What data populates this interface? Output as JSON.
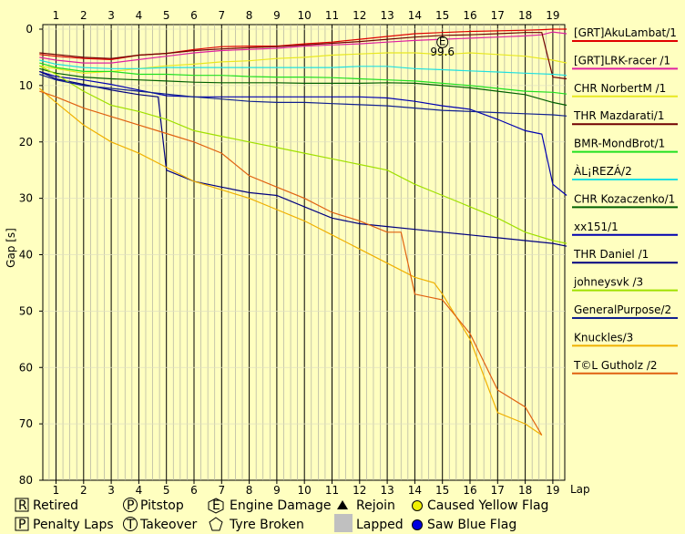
{
  "chart_data": {
    "type": "line",
    "title": "",
    "xlabel": "Lap",
    "ylabel": "Gap [s]",
    "x_ticks": [
      1,
      2,
      3,
      4,
      5,
      6,
      7,
      8,
      9,
      10,
      11,
      12,
      13,
      14,
      15,
      16,
      17,
      18,
      19
    ],
    "ylim": [
      0,
      80
    ],
    "y_ticks": [
      0,
      10,
      20,
      30,
      40,
      50,
      60,
      70,
      80
    ],
    "y_inverted": true,
    "grid": true,
    "legend_placement": "right",
    "series": [
      {
        "name": "[GRT]AkuLambat/1",
        "color": "#e00000",
        "x": [
          0.4,
          1,
          2,
          3,
          4,
          5,
          6,
          7,
          8,
          9,
          10,
          11,
          12,
          13,
          14,
          15,
          16,
          17,
          18,
          18.6,
          19,
          19.5
        ],
        "y": [
          4.5,
          4.8,
          5.2,
          5.4,
          4.6,
          4.3,
          3.6,
          3.1,
          3.0,
          3.0,
          2.6,
          2.3,
          1.8,
          1.3,
          0.8,
          0.6,
          0.4,
          0.3,
          0.2,
          0.1,
          0,
          0
        ]
      },
      {
        "name": "[GRT]LRK-racer /1",
        "color": "#e020a0",
        "x": [
          0.4,
          1,
          2,
          3,
          4,
          5,
          6,
          7,
          8,
          9,
          10,
          11,
          12,
          13,
          14,
          15,
          16,
          17,
          18,
          18.6,
          19,
          19.5
        ],
        "y": [
          5,
          5.5,
          6,
          6,
          5.4,
          4.8,
          4.2,
          3.8,
          3.6,
          3.4,
          3.0,
          2.8,
          2.6,
          2.3,
          2.0,
          1.8,
          1.6,
          1.4,
          1.2,
          1.0,
          0.5,
          0.8
        ]
      },
      {
        "name": "CHR NorbertM /1",
        "color": "#e8e820",
        "x": [
          0.4,
          1,
          2,
          3,
          4,
          5,
          6,
          7,
          8,
          9,
          10,
          11,
          12,
          13,
          14,
          15,
          16,
          17,
          18,
          19,
          19.5
        ],
        "y": [
          6.5,
          7,
          7.8,
          7.5,
          7,
          6.5,
          6.2,
          5.8,
          5.6,
          5.2,
          5,
          4.6,
          4.4,
          4.2,
          4.2,
          4.5,
          4.2,
          4.5,
          4.8,
          5.5,
          6
        ]
      },
      {
        "name": "THR Mazdarati/1",
        "color": "#700000",
        "x": [
          0.4,
          1,
          2,
          3,
          4,
          5,
          6,
          7,
          8,
          9,
          10,
          11,
          12,
          13,
          14,
          15,
          16,
          17,
          18,
          18.6,
          19,
          19.5
        ],
        "y": [
          4.2,
          4.5,
          5,
          5.2,
          4.6,
          4.3,
          3.8,
          3.5,
          3.3,
          3.1,
          2.8,
          2.5,
          2.2,
          1.8,
          1.4,
          1.1,
          1.0,
          0.8,
          0.6,
          0.6,
          8.5,
          8.8
        ]
      },
      {
        "name": "BMR-MondBrot/1",
        "color": "#20e020",
        "x": [
          0.4,
          1,
          2,
          3,
          4,
          5,
          6,
          7,
          8,
          9,
          10,
          11,
          12,
          13,
          14,
          15,
          16,
          17,
          18,
          19,
          19.5
        ],
        "y": [
          6,
          6.8,
          7.5,
          7.5,
          8,
          8,
          8.2,
          8.2,
          8.4,
          8.5,
          8.5,
          8.6,
          8.8,
          9,
          9.2,
          9.6,
          10,
          10.5,
          11,
          11.2,
          11.5
        ]
      },
      {
        "name": "ÀL¡REZÁ/2",
        "color": "#20e0e0",
        "x": [
          0.4,
          1,
          2,
          3,
          4,
          5,
          6,
          7,
          8,
          9,
          10,
          11,
          12,
          13,
          14,
          15,
          16,
          17,
          18,
          19,
          19.5
        ],
        "y": [
          5.5,
          6.2,
          6.8,
          7,
          7,
          6.8,
          6.8,
          6.8,
          6.8,
          6.8,
          6.8,
          6.8,
          6.6,
          6.6,
          7,
          7.2,
          7.4,
          7.6,
          7.8,
          8,
          8.2
        ]
      },
      {
        "name": "CHR Kozaczenko/1",
        "color": "#006000",
        "x": [
          0.4,
          1,
          2,
          3,
          4,
          5,
          6,
          7,
          8,
          9,
          10,
          11,
          12,
          13,
          14,
          15,
          16,
          17,
          18,
          19,
          19.5
        ],
        "y": [
          7,
          7.8,
          8.5,
          8.8,
          9,
          9.2,
          9.4,
          9.5,
          9.5,
          9.5,
          9.6,
          9.6,
          9.6,
          9.5,
          9.6,
          10,
          10.4,
          11,
          11.6,
          13,
          13.5
        ]
      },
      {
        "name": "xx151/1",
        "color": "#0000b0",
        "x": [
          0.4,
          1,
          2,
          3,
          4,
          5,
          6,
          7,
          8,
          9,
          10,
          11,
          12,
          13,
          14,
          15,
          16,
          17,
          18,
          18.6,
          19,
          19.5
        ],
        "y": [
          7.5,
          8.4,
          9,
          9.8,
          10.8,
          11.8,
          12,
          12,
          12,
          12,
          12,
          12,
          12,
          12.2,
          12.8,
          13.6,
          14.2,
          16,
          18,
          18.6,
          27.5,
          29.5
        ]
      },
      {
        "name": "THR Daniel /1",
        "color": "#000080",
        "x": [
          0.4,
          1,
          2,
          3,
          4,
          4.7,
          5,
          6,
          7,
          8,
          9,
          10,
          11,
          12,
          13,
          14,
          15,
          16,
          17,
          18,
          19,
          19.5
        ],
        "y": [
          7.5,
          8.8,
          9.8,
          10.8,
          11.6,
          12,
          25,
          27,
          28,
          29,
          29.5,
          31.5,
          33.5,
          34.5,
          35,
          35.5,
          36,
          36.5,
          37,
          37.5,
          38,
          38.5
        ]
      },
      {
        "name": "johneysvk /3",
        "color": "#a0e000",
        "x": [
          0.4,
          1,
          2,
          3,
          4,
          5,
          6,
          7,
          8,
          9,
          10,
          11,
          12,
          13,
          14,
          15,
          16,
          17,
          18,
          19,
          19.5
        ],
        "y": [
          6.5,
          8,
          11,
          13.5,
          14.6,
          16,
          18,
          19,
          20,
          21,
          22,
          23,
          24,
          25,
          27.5,
          29.5,
          31.5,
          33.5,
          36,
          37.5,
          38
        ]
      },
      {
        "name": "GeneralPurpose/2",
        "color": "#102090",
        "x": [
          0.4,
          1,
          2,
          3,
          4,
          5,
          6,
          7,
          8,
          9,
          10,
          11,
          12,
          13,
          14,
          15,
          16,
          17,
          18,
          19,
          19.5
        ],
        "y": [
          8,
          9,
          10,
          10.5,
          11,
          11.5,
          12,
          12.4,
          12.8,
          13,
          13,
          13.2,
          13.4,
          13.6,
          14,
          14.4,
          14.6,
          14.8,
          15,
          15.2,
          15.4
        ]
      },
      {
        "name": "Knuckles/3",
        "color": "#f0b000",
        "x": [
          0.4,
          1,
          2,
          3,
          4,
          5,
          6,
          7,
          8,
          9,
          10,
          11,
          12,
          13,
          14,
          14.7,
          15,
          16,
          17,
          18,
          18.6
        ],
        "y": [
          10.5,
          13,
          17,
          20,
          22,
          24.5,
          27,
          28.5,
          30,
          32,
          34,
          36.5,
          39,
          41.5,
          44,
          45,
          47,
          55,
          68,
          70,
          72
        ]
      },
      {
        "name": "T©L Gutholz /2",
        "color": "#e06010",
        "x": [
          0.4,
          1,
          2,
          3,
          4,
          5,
          6,
          7,
          8,
          9,
          10,
          11,
          12,
          13,
          13.5,
          14,
          15,
          16,
          17,
          18,
          18.6
        ],
        "y": [
          11,
          12,
          14,
          15.5,
          17,
          18.5,
          20,
          22,
          26,
          28,
          30,
          32.5,
          34,
          36,
          36,
          47,
          48,
          54,
          64,
          67,
          72
        ]
      }
    ]
  },
  "special_marks": [
    {
      "type": "engine-damage",
      "symbol": "E",
      "lap": 15,
      "gap": 2.3,
      "label": "99.6"
    }
  ],
  "key": {
    "retired": {
      "symbol": "R",
      "label": "Retired"
    },
    "penalty": {
      "symbol": "P",
      "label": "Penalty Laps"
    },
    "pitstop": {
      "symbol": "P",
      "label": "Pitstop"
    },
    "takeover": {
      "symbol": "T",
      "label": "Takeover"
    },
    "engine_damage": {
      "symbol": "E",
      "label": "Engine Damage"
    },
    "tyre_broken": {
      "label": "Tyre Broken"
    },
    "rejoin": {
      "label": "Rejoin"
    },
    "lapped": {
      "label": "Lapped"
    },
    "caused_yellow": {
      "label": "Caused Yellow Flag",
      "color": "#f0f000"
    },
    "saw_blue": {
      "label": "Saw Blue Flag",
      "color": "#0000e0"
    }
  }
}
